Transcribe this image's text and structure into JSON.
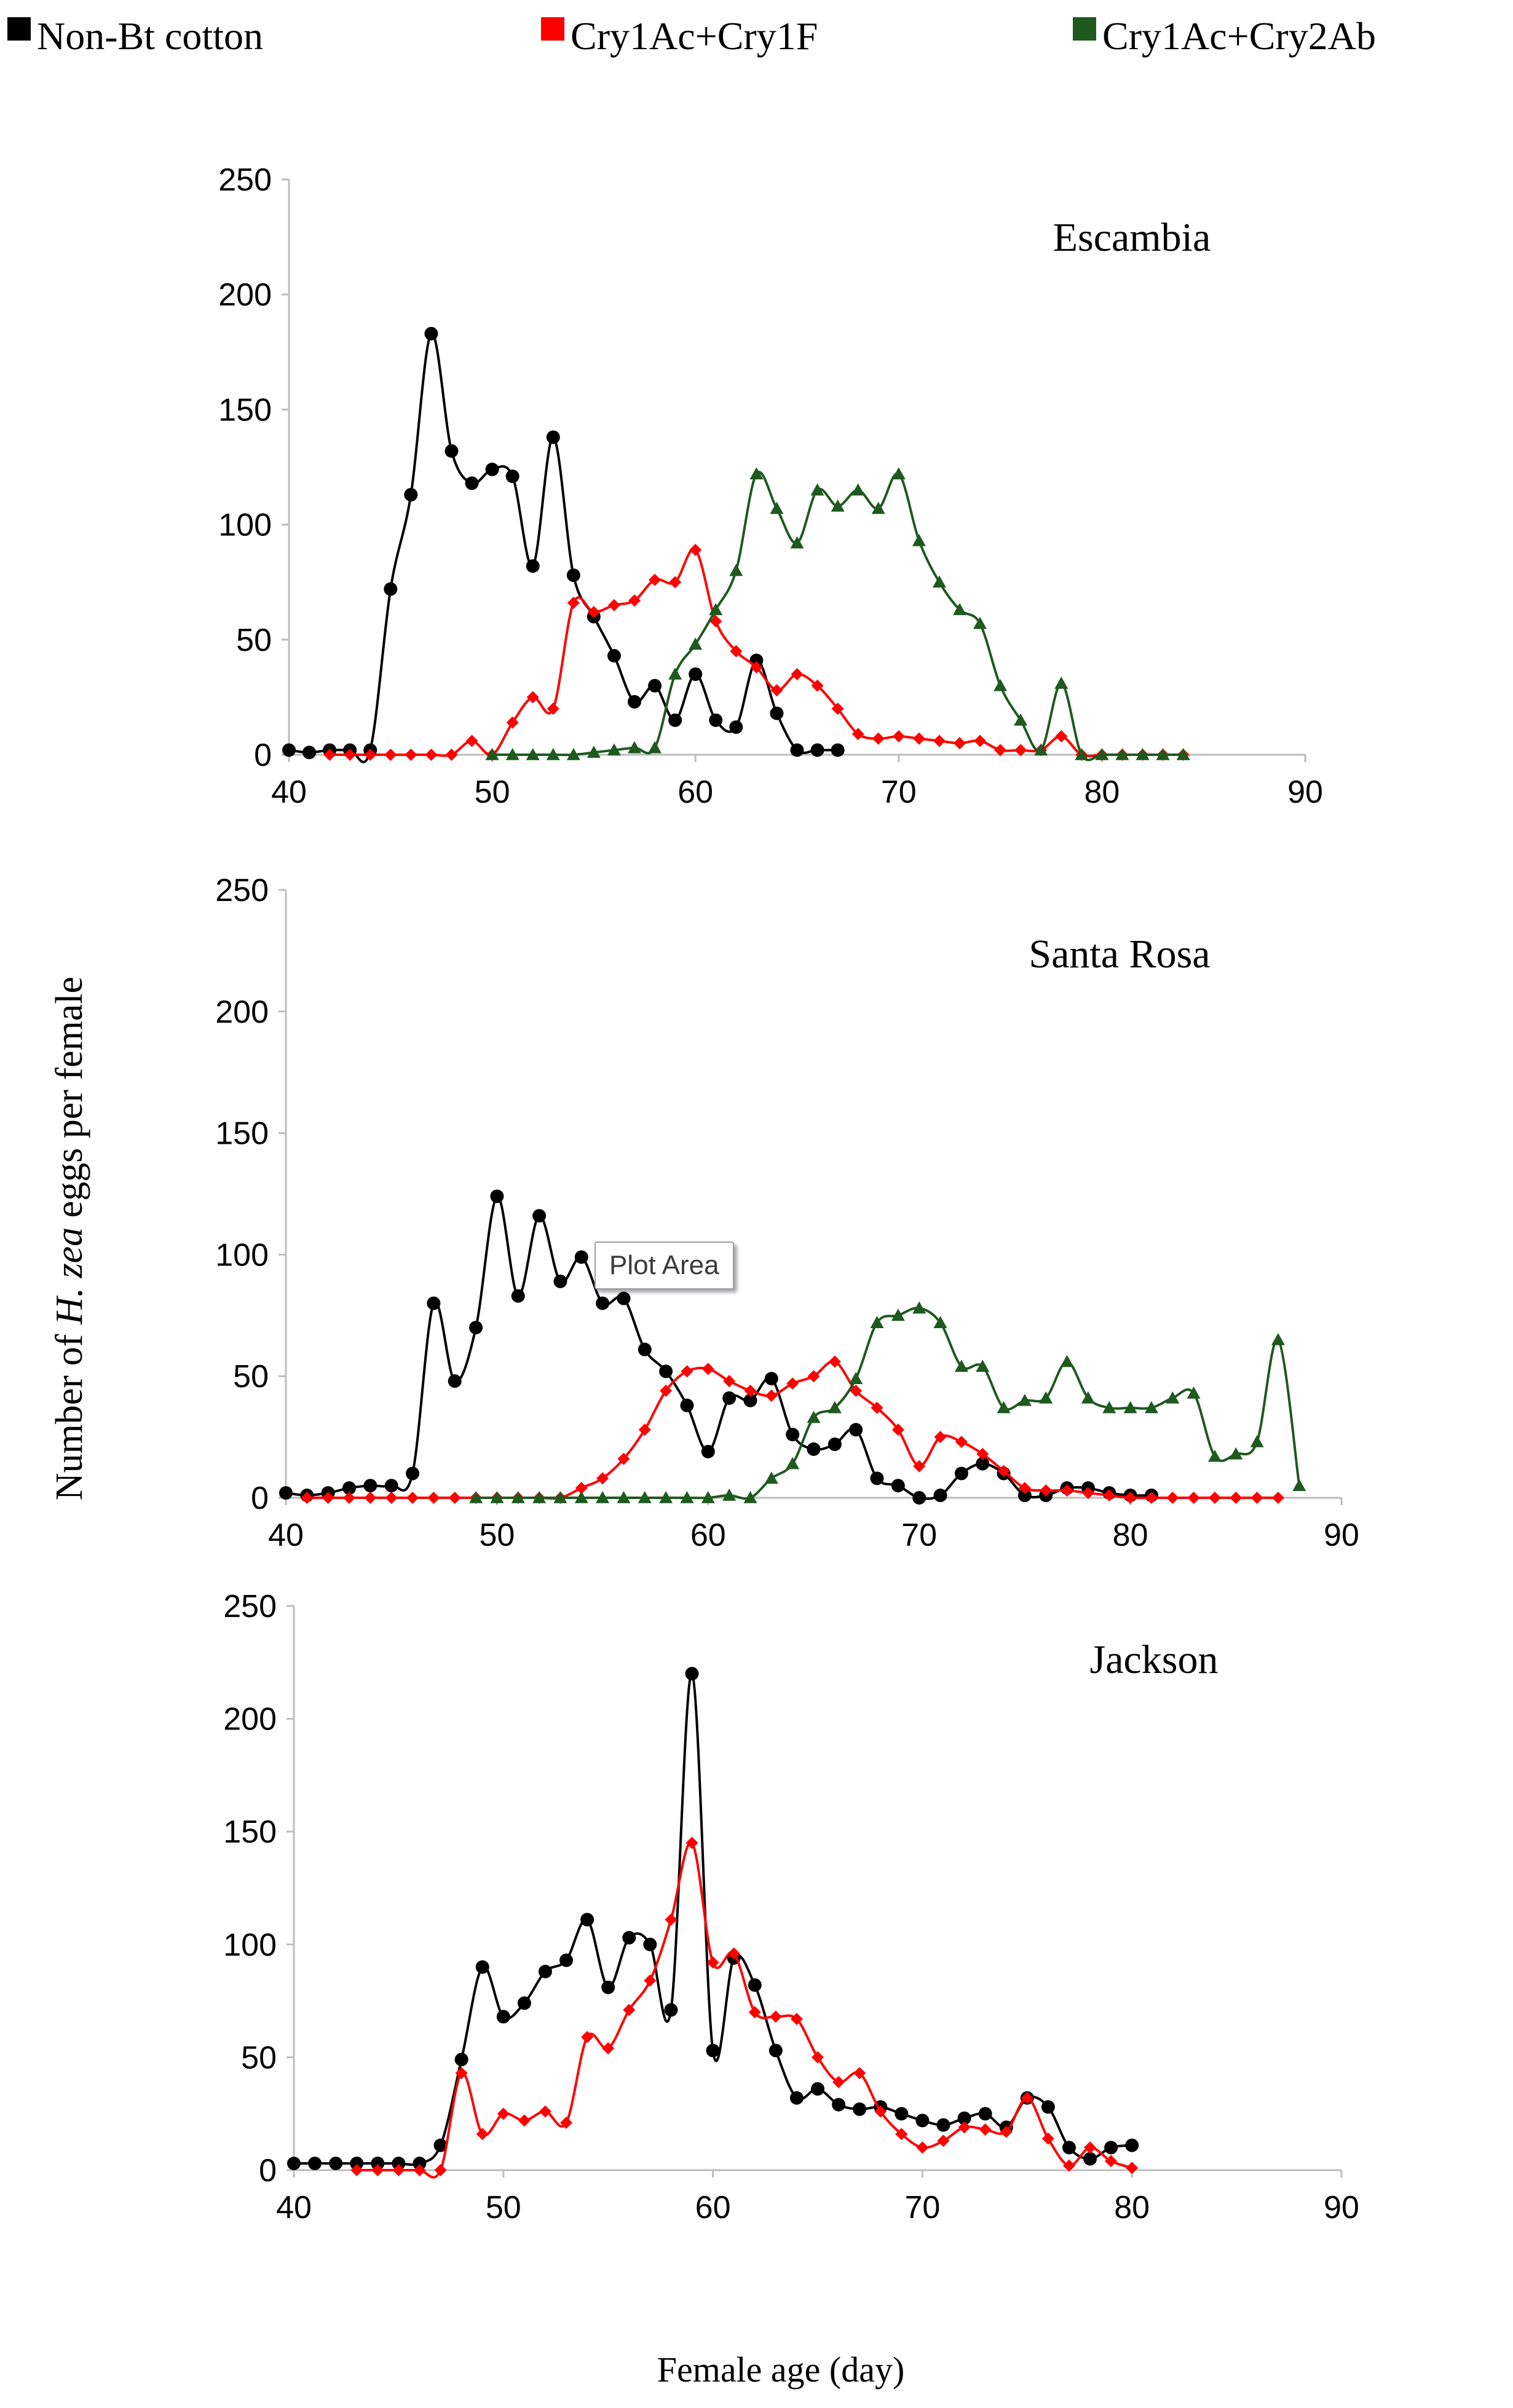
{
  "chart_data": {
    "type": "line",
    "xlabel": "Female age (day)",
    "ylabel_parts": [
      "Number of ",
      "H. zea",
      " eggs per female"
    ],
    "xlim": [
      40,
      90
    ],
    "ylim": [
      0,
      250
    ],
    "x_ticks": [
      40,
      50,
      60,
      70,
      80,
      90
    ],
    "y_ticks": [
      0,
      50,
      100,
      150,
      200,
      250
    ],
    "legend": {
      "placement": "top",
      "entries": [
        {
          "name": "Non-Bt cotton",
          "color": "#000000",
          "marker": "circle"
        },
        {
          "name": "Cry1Ac+Cry1F",
          "color": "#ff0000",
          "marker": "diamond"
        },
        {
          "name": "Cry1Ac+Cry2Ab",
          "color": "#1e5a1e",
          "marker": "triangle"
        }
      ]
    },
    "panels": [
      {
        "title": "Escambia",
        "series": [
          {
            "name": "Non-Bt cotton",
            "x": [
              40,
              41,
              42,
              43,
              44,
              45,
              46,
              47,
              48,
              49,
              50,
              51,
              52,
              53,
              54,
              55,
              56,
              57,
              58,
              59,
              60,
              61,
              62,
              63,
              64,
              65,
              66,
              67
            ],
            "y": [
              2,
              1,
              2,
              2,
              2,
              72,
              113,
              183,
              132,
              118,
              124,
              121,
              82,
              138,
              78,
              60,
              43,
              23,
              30,
              15,
              35,
              15,
              12,
              41,
              18,
              2,
              2,
              2
            ]
          },
          {
            "name": "Cry1Ac+Cry1F",
            "x": [
              42,
              43,
              44,
              45,
              46,
              47,
              48,
              49,
              50,
              51,
              52,
              53,
              54,
              55,
              56,
              57,
              58,
              59,
              60,
              61,
              62,
              63,
              64,
              65,
              66,
              67,
              68,
              69,
              70,
              71,
              72,
              73,
              74,
              75,
              76,
              77,
              78,
              79,
              80,
              81,
              82,
              83,
              84
            ],
            "y": [
              0,
              0,
              0,
              0,
              0,
              0,
              0,
              6,
              0,
              14,
              25,
              20,
              66,
              62,
              65,
              67,
              76,
              75,
              89,
              58,
              45,
              38,
              28,
              35,
              30,
              20,
              9,
              7,
              8,
              7,
              6,
              5,
              6,
              2,
              2,
              2,
              8,
              0,
              0,
              0,
              0,
              0,
              0
            ]
          },
          {
            "name": "Cry1Ac+Cry2Ab",
            "x": [
              50,
              51,
              52,
              53,
              54,
              55,
              56,
              57,
              58,
              59,
              60,
              61,
              62,
              63,
              64,
              65,
              66,
              67,
              68,
              69,
              70,
              71,
              72,
              73,
              74,
              75,
              76,
              77,
              78,
              79,
              80,
              81,
              82,
              83,
              84
            ],
            "y": [
              0,
              0,
              0,
              0,
              0,
              1,
              2,
              3,
              3,
              35,
              48,
              63,
              80,
              122,
              107,
              92,
              115,
              108,
              115,
              107,
              122,
              93,
              75,
              63,
              57,
              30,
              15,
              2,
              31,
              0,
              0,
              0,
              0,
              0,
              0
            ]
          }
        ]
      },
      {
        "title": "Santa Rosa",
        "series": [
          {
            "name": "Non-Bt cotton",
            "x": [
              40,
              41,
              42,
              43,
              44,
              45,
              46,
              47,
              48,
              49,
              50,
              51,
              52,
              53,
              54,
              55,
              56,
              57,
              58,
              59,
              60,
              61,
              62,
              63,
              64,
              65,
              66,
              67,
              68,
              69,
              70,
              71,
              72,
              73,
              74,
              75,
              76,
              77,
              78,
              79,
              80,
              81
            ],
            "y": [
              2,
              1,
              2,
              4,
              5,
              5,
              10,
              80,
              48,
              70,
              124,
              83,
              116,
              89,
              99,
              80,
              82,
              61,
              52,
              38,
              19,
              41,
              40,
              49,
              26,
              20,
              22,
              28,
              8,
              5,
              0,
              1,
              10,
              14,
              10,
              1,
              1,
              4,
              4,
              2,
              1,
              1
            ]
          },
          {
            "name": "Cry1Ac+Cry1F",
            "x": [
              41,
              42,
              43,
              44,
              45,
              46,
              47,
              48,
              49,
              50,
              51,
              52,
              53,
              54,
              55,
              56,
              57,
              58,
              59,
              60,
              61,
              62,
              63,
              64,
              65,
              66,
              67,
              68,
              69,
              70,
              71,
              72,
              73,
              74,
              75,
              76,
              77,
              78,
              79,
              80,
              81,
              82,
              83,
              84,
              85,
              86,
              87
            ],
            "y": [
              0,
              0,
              0,
              0,
              0,
              0,
              0,
              0,
              0,
              0,
              0,
              0,
              0,
              4,
              8,
              16,
              28,
              44,
              52,
              53,
              48,
              44,
              42,
              47,
              50,
              56,
              44,
              37,
              28,
              13,
              25,
              23,
              18,
              11,
              4,
              3,
              3,
              2,
              1,
              0,
              0,
              0,
              0,
              0,
              0,
              0,
              0
            ]
          },
          {
            "name": "Cry1Ac+Cry2Ab",
            "x": [
              49,
              50,
              51,
              52,
              53,
              54,
              55,
              56,
              57,
              58,
              59,
              60,
              61,
              62,
              63,
              64,
              65,
              66,
              67,
              68,
              69,
              70,
              71,
              72,
              73,
              74,
              75,
              76,
              77,
              78,
              79,
              80,
              81,
              82,
              83,
              84,
              85,
              86,
              87,
              88
            ],
            "y": [
              0,
              0,
              0,
              0,
              0,
              0,
              0,
              0,
              0,
              0,
              0,
              0,
              1,
              0,
              8,
              14,
              33,
              37,
              49,
              72,
              75,
              78,
              72,
              54,
              54,
              37,
              40,
              41,
              56,
              41,
              37,
              37,
              37,
              41,
              43,
              17,
              18,
              23,
              65,
              5
            ]
          }
        ]
      },
      {
        "title": "Jackson",
        "series": [
          {
            "name": "Non-Bt cotton",
            "x": [
              40,
              41,
              42,
              43,
              44,
              45,
              46,
              47,
              48,
              49,
              50,
              51,
              52,
              53,
              54,
              55,
              56,
              57,
              58,
              59,
              60,
              61,
              62,
              63,
              64,
              65,
              66,
              67,
              68,
              69,
              70,
              71,
              72,
              73,
              74,
              75,
              76,
              77,
              78,
              79,
              80
            ],
            "y": [
              3,
              3,
              3,
              3,
              3,
              3,
              3,
              11,
              49,
              90,
              68,
              74,
              88,
              93,
              111,
              81,
              103,
              100,
              71,
              220,
              53,
              94,
              82,
              53,
              32,
              36,
              29,
              27,
              28,
              25,
              22,
              20,
              23,
              25,
              19,
              32,
              28,
              10,
              5,
              10,
              11
            ]
          },
          {
            "name": "Cry1Ac+Cry1F",
            "x": [
              43,
              44,
              45,
              46,
              47,
              48,
              49,
              50,
              51,
              52,
              53,
              54,
              55,
              56,
              57,
              58,
              59,
              60,
              61,
              62,
              63,
              64,
              65,
              66,
              67,
              68,
              69,
              70,
              71,
              72,
              73,
              74,
              75,
              76,
              77,
              78,
              79,
              80
            ],
            "y": [
              0,
              0,
              0,
              0,
              0,
              43,
              16,
              25,
              22,
              26,
              21,
              59,
              54,
              71,
              84,
              111,
              145,
              92,
              96,
              70,
              68,
              67,
              50,
              39,
              43,
              26,
              16,
              10,
              13,
              19,
              18,
              17,
              32,
              14,
              2,
              10,
              4,
              1
            ]
          }
        ]
      }
    ]
  },
  "tooltip": {
    "label": "Plot Area"
  }
}
